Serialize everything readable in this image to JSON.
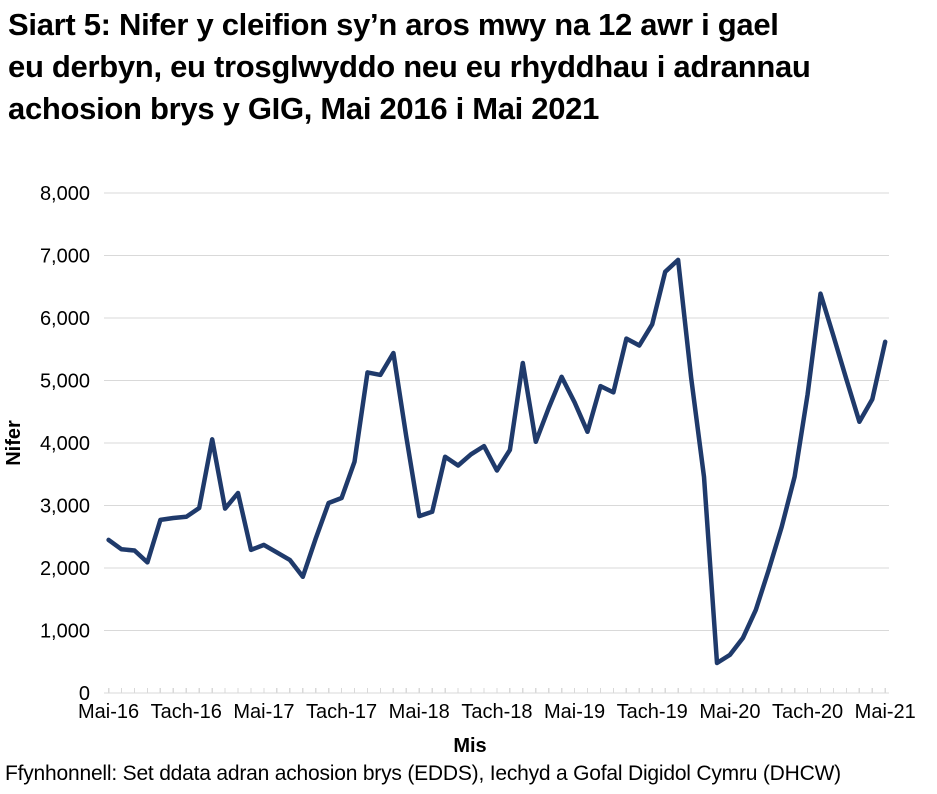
{
  "title": "Siart 5: Nifer y cleifion sy’n aros mwy na 12 awr i gael\neu derbyn, eu trosglwyddo neu eu rhyddhau i adrannau\nachosion brys y GIG, Mai 2016 i Mai 2021",
  "source_note": "Ffynhonnell: Set ddata adran achosion brys (EDDS), Iechyd a Gofal Digidol Cymru (DHCW)",
  "chart_data": {
    "type": "line",
    "title": "Siart 5: Nifer y cleifion sy’n aros mwy na 12 awr i gael eu derbyn, eu trosglwyddo neu eu rhyddhau i adrannau achosion brys y GIG, Mai 2016 i Mai 2021",
    "x_axis_label": "Mis",
    "y_axis_label": "Nifer",
    "ylim": [
      0,
      8000
    ],
    "y_tick_step": 1000,
    "grid": "horizontal",
    "legend": "none",
    "line_color": "#1f3a6b",
    "gridline_color": "#d9d9d9",
    "text_color": "#000000",
    "y_tick_labels": [
      "0",
      "1,000",
      "2,000",
      "3,000",
      "4,000",
      "5,000",
      "6,000",
      "7,000",
      "8,000"
    ],
    "x_tick_labels": [
      "Mai-16",
      "Tach-16",
      "Mai-17",
      "Tach-17",
      "Mai-18",
      "Tach-18",
      "Mai-19",
      "Tach-19",
      "Mai-20",
      "Tach-20",
      "Mai-21"
    ],
    "months": [
      "Mai-16",
      "Meh-16",
      "Gor-16",
      "Aws-16",
      "Med-16",
      "Hyd-16",
      "Tach-16",
      "Rhag-16",
      "Ion-17",
      "Chw-17",
      "Maw-17",
      "Ebr-17",
      "Mai-17",
      "Meh-17",
      "Gor-17",
      "Aws-17",
      "Med-17",
      "Hyd-17",
      "Tach-17",
      "Rhag-17",
      "Ion-18",
      "Chw-18",
      "Maw-18",
      "Ebr-18",
      "Mai-18",
      "Meh-18",
      "Gor-18",
      "Aws-18",
      "Med-18",
      "Hyd-18",
      "Tach-18",
      "Rhag-18",
      "Ion-19",
      "Chw-19",
      "Maw-19",
      "Ebr-19",
      "Mai-19",
      "Meh-19",
      "Gor-19",
      "Aws-19",
      "Med-19",
      "Hyd-19",
      "Tach-19",
      "Rhag-19",
      "Ion-20",
      "Chw-20",
      "Maw-20",
      "Ebr-20",
      "Mai-20",
      "Meh-20",
      "Gor-20",
      "Aws-20",
      "Med-20",
      "Hyd-20",
      "Tach-20",
      "Rhag-20",
      "Ion-21",
      "Chw-21",
      "Maw-21",
      "Ebr-21",
      "Mai-21"
    ],
    "values": [
      2450,
      2300,
      2280,
      2090,
      2770,
      2800,
      2820,
      2960,
      4060,
      2950,
      3200,
      2290,
      2370,
      2250,
      2130,
      1860,
      2470,
      3040,
      3120,
      3700,
      5130,
      5090,
      5440,
      4100,
      2830,
      2900,
      3780,
      3640,
      3820,
      3950,
      3560,
      3890,
      5280,
      4020,
      4560,
      5060,
      4650,
      4180,
      4910,
      4810,
      5670,
      5560,
      5900,
      6740,
      6930,
      5050,
      3460,
      480,
      610,
      880,
      1330,
      1970,
      2660,
      3460,
      4780,
      6390,
      5710,
      5020,
      4340,
      4700,
      5620
    ]
  }
}
